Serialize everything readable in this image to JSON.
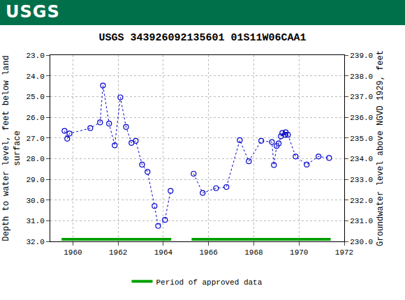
{
  "header": {
    "logo_text": "USGS"
  },
  "chart_data": {
    "type": "scatter",
    "title": "USGS 343926092135601 01S11W06CAA1",
    "ylabel": [
      "Depth to water level, feet below land",
      "surface"
    ],
    "y2label": "Groundwater level above NGVD 1929, feet",
    "x": [
      1959.63,
      1959.75,
      1959.85,
      1960.77,
      1961.2,
      1961.33,
      1961.6,
      1961.85,
      1962.1,
      1962.35,
      1962.59,
      1962.78,
      1963.06,
      1963.3,
      1963.61,
      1963.77,
      1964.07,
      1964.32,
      null,
      1965.34,
      1965.74,
      1966.33,
      1966.79,
      1967.38,
      1967.78,
      1968.33,
      1968.8,
      1968.89,
      1969.01,
      1969.1,
      1969.2,
      1969.26,
      1969.38,
      1969.41,
      1969.51,
      1969.85,
      1970.34,
      1970.86,
      1971.33
    ],
    "series": [
      {
        "values": [
          26.66,
          27.04,
          26.79,
          26.53,
          26.25,
          24.47,
          26.31,
          27.36,
          25.04,
          26.47,
          27.24,
          27.14,
          28.29,
          28.64,
          30.29,
          31.25,
          30.96,
          29.56,
          null,
          28.73,
          29.66,
          29.43,
          29.37,
          27.11,
          28.13,
          27.14,
          27.2,
          28.31,
          27.39,
          27.27,
          26.92,
          26.76,
          26.85,
          26.73,
          26.85,
          27.9,
          28.29,
          27.9,
          27.97
        ],
        "color": "#0000cc",
        "marker": "circle-open",
        "line_style": "dot"
      }
    ],
    "approved": {
      "name": "Period of approved data",
      "color": "#00a000",
      "level": 31.9,
      "periods": [
        [
          1959.5,
          1964.35
        ],
        [
          1965.25,
          1971.4
        ]
      ]
    },
    "xlim": [
      1959,
      1972
    ],
    "xticks": [
      1960,
      1962,
      1964,
      1966,
      1968,
      1970,
      1972
    ],
    "ylim": [
      32,
      23
    ],
    "yticks": [
      {
        "value": 23,
        "label": "23.0"
      },
      {
        "value": 24,
        "label": "24.0"
      },
      {
        "value": 25,
        "label": "25.0"
      },
      {
        "value": 26,
        "label": "26.0"
      },
      {
        "value": 27,
        "label": "27.0"
      },
      {
        "value": 28,
        "label": "28.0"
      },
      {
        "value": 29,
        "label": "29.0"
      },
      {
        "value": 30,
        "label": "30.0"
      },
      {
        "value": 31,
        "label": "31.0"
      },
      {
        "value": 32,
        "label": "32.0"
      }
    ],
    "y2lim": [
      230,
      239
    ],
    "y2ticks": [
      {
        "value": 230,
        "label": "230.0"
      },
      {
        "value": 231,
        "label": "231.0"
      },
      {
        "value": 232,
        "label": "232.0"
      },
      {
        "value": 233,
        "label": "233.0"
      },
      {
        "value": 234,
        "label": "234.0"
      },
      {
        "value": 235,
        "label": "235.0"
      },
      {
        "value": 236,
        "label": "236.0"
      },
      {
        "value": 237,
        "label": "237.0"
      },
      {
        "value": 238,
        "label": "238.0"
      },
      {
        "value": 239,
        "label": "239.0"
      }
    ],
    "grid": true,
    "legend": "bottom"
  }
}
